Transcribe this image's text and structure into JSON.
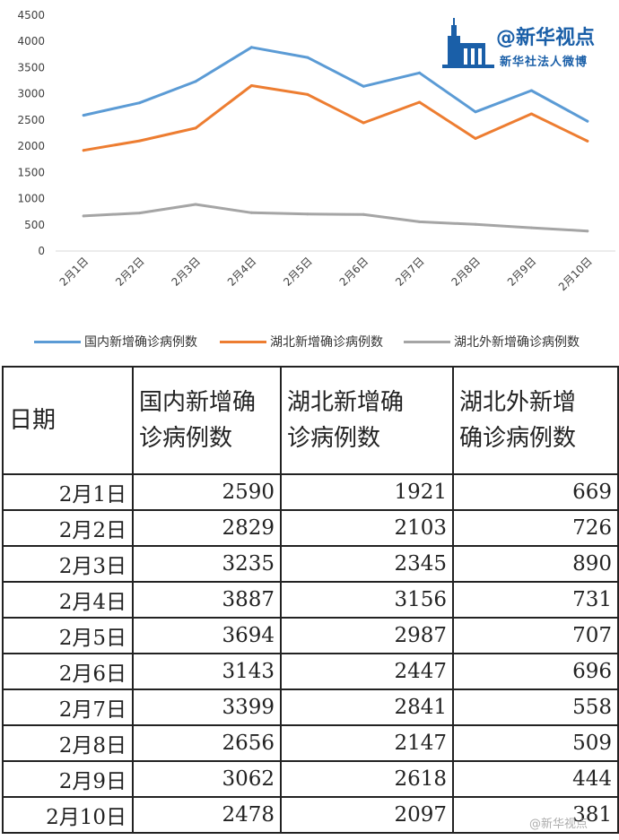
{
  "chart_data": {
    "type": "line",
    "categories": [
      "2月1日",
      "2月2日",
      "2月3日",
      "2月4日",
      "2月5日",
      "2月6日",
      "2月7日",
      "2月8日",
      "2月9日",
      "2月10日"
    ],
    "series": [
      {
        "name": "国内新增确诊病例数",
        "color": "#5b9bd5",
        "values": [
          2590,
          2829,
          3235,
          3887,
          3694,
          3143,
          3399,
          2656,
          3062,
          2478
        ]
      },
      {
        "name": "湖北新增确诊病例数",
        "color": "#ed7d31",
        "values": [
          1921,
          2103,
          2345,
          3156,
          2987,
          2447,
          2841,
          2147,
          2618,
          2097
        ]
      },
      {
        "name": "湖北外新增确诊病例数",
        "color": "#a5a5a5",
        "values": [
          669,
          726,
          890,
          731,
          707,
          696,
          558,
          509,
          444,
          381
        ]
      }
    ],
    "yticks": [
      "0",
      "500",
      "1000",
      "1500",
      "2000",
      "2500",
      "3000",
      "3500",
      "4000",
      "4500"
    ],
    "ylim": [
      0,
      4500
    ],
    "grid": false,
    "legend": "bottom"
  },
  "logo": {
    "main": "@新华视点",
    "sub": "新华社法人微博"
  },
  "table": {
    "headers": [
      "日期",
      "国内新增确诊病例数",
      "湖北新增确诊病例数",
      "湖北外新增确诊病例数"
    ],
    "header_lines": [
      [
        "日期"
      ],
      [
        "国内新增确",
        "诊病例数"
      ],
      [
        "湖北新增确",
        "诊病例数"
      ],
      [
        "湖北外新增",
        "确诊病例数"
      ]
    ],
    "rows": [
      [
        "2月1日",
        "2590",
        "1921",
        "669"
      ],
      [
        "2月2日",
        "2829",
        "2103",
        "726"
      ],
      [
        "2月3日",
        "3235",
        "2345",
        "890"
      ],
      [
        "2月4日",
        "3887",
        "3156",
        "731"
      ],
      [
        "2月5日",
        "3694",
        "2987",
        "707"
      ],
      [
        "2月6日",
        "3143",
        "2447",
        "696"
      ],
      [
        "2月7日",
        "3399",
        "2841",
        "558"
      ],
      [
        "2月8日",
        "2656",
        "2147",
        "509"
      ],
      [
        "2月9日",
        "3062",
        "2618",
        "444"
      ],
      [
        "2月10日",
        "2478",
        "2097",
        "381"
      ]
    ]
  },
  "watermark": "@新华视点"
}
